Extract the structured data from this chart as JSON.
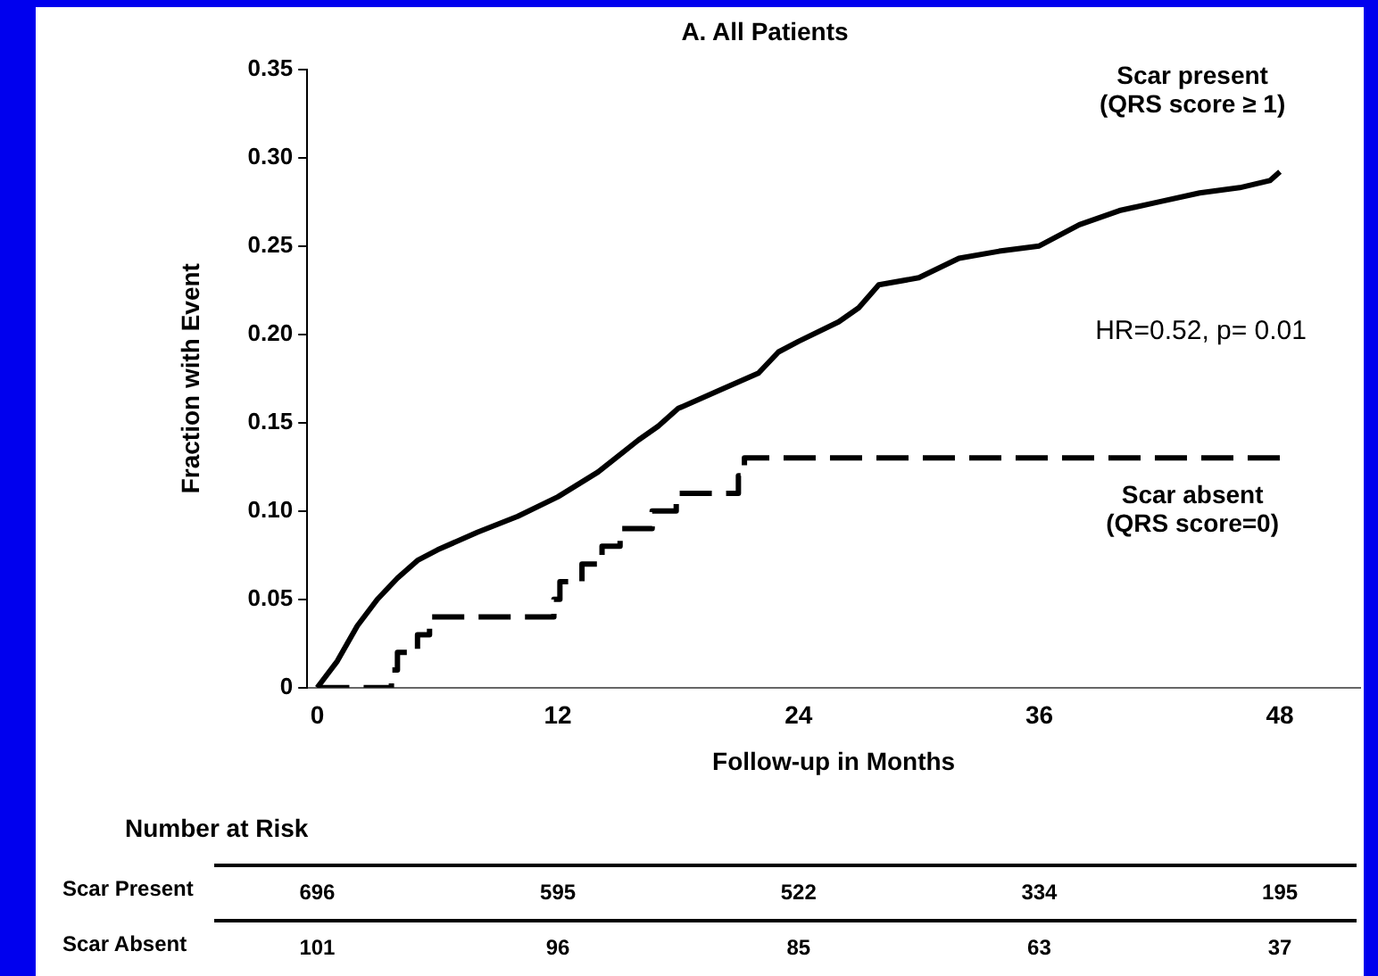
{
  "chart_data": {
    "type": "line",
    "title": "A. All Patients",
    "xlabel": "Follow-up in Months",
    "ylabel": "Fraction with Event",
    "xlim": [
      -0.5,
      52
    ],
    "xticks": [
      0,
      12,
      24,
      36,
      48
    ],
    "ylim": [
      0,
      0.35
    ],
    "yticks": [
      0,
      0.05,
      {
        "value": 0.1,
        "label": "0.10"
      },
      0.15,
      {
        "value": 0.2,
        "label": "0.20"
      },
      0.25,
      {
        "value": 0.3,
        "label": "0.30"
      },
      0.35
    ],
    "grid": false,
    "legend": false,
    "marker": "none",
    "series": [
      {
        "name": "Scar present (QRS score ≥ 1)",
        "color": "#000000",
        "line_style": "solid",
        "x": [
          0,
          1,
          2,
          3,
          4,
          5,
          6,
          8,
          10,
          12,
          14,
          16,
          17,
          18,
          20,
          22,
          23,
          24,
          26,
          27,
          28,
          30,
          32,
          34,
          36,
          38,
          40,
          42,
          44,
          46,
          47.5,
          48
        ],
        "values": [
          0,
          0.015,
          0.035,
          0.05,
          0.062,
          0.072,
          0.078,
          0.088,
          0.097,
          0.108,
          0.122,
          0.14,
          0.148,
          0.158,
          0.168,
          0.178,
          0.19,
          0.196,
          0.207,
          0.215,
          0.228,
          0.232,
          0.243,
          0.247,
          0.25,
          0.262,
          0.27,
          0.275,
          0.28,
          0.283,
          0.287,
          0.292
        ]
      },
      {
        "name": "Scar absent (QRS score=0)",
        "color": "#000000",
        "line_style": "dashed",
        "x": [
          0,
          3.7,
          3.7,
          4,
          4,
          5,
          5,
          5.6,
          5.6,
          11.8,
          11.8,
          12.1,
          12.1,
          13.2,
          13.2,
          14.2,
          14.2,
          15.1,
          15.1,
          16.7,
          16.7,
          17.9,
          17.9,
          21,
          21,
          21.3,
          21.3,
          48
        ],
        "values": [
          0,
          0,
          0.01,
          0.01,
          0.02,
          0.02,
          0.03,
          0.03,
          0.04,
          0.04,
          0.05,
          0.05,
          0.06,
          0.06,
          0.07,
          0.07,
          0.08,
          0.08,
          0.09,
          0.09,
          0.1,
          0.1,
          0.11,
          0.11,
          0.12,
          0.12,
          0.13,
          0.13
        ]
      }
    ],
    "annotations": [
      "HR=0.52, p= 0.01",
      "Number at Risk",
      "Scar Present",
      "696",
      "595",
      "522",
      "334",
      "195",
      "Scar Absent",
      "101",
      "96",
      "85",
      "63",
      "37"
    ]
  }
}
